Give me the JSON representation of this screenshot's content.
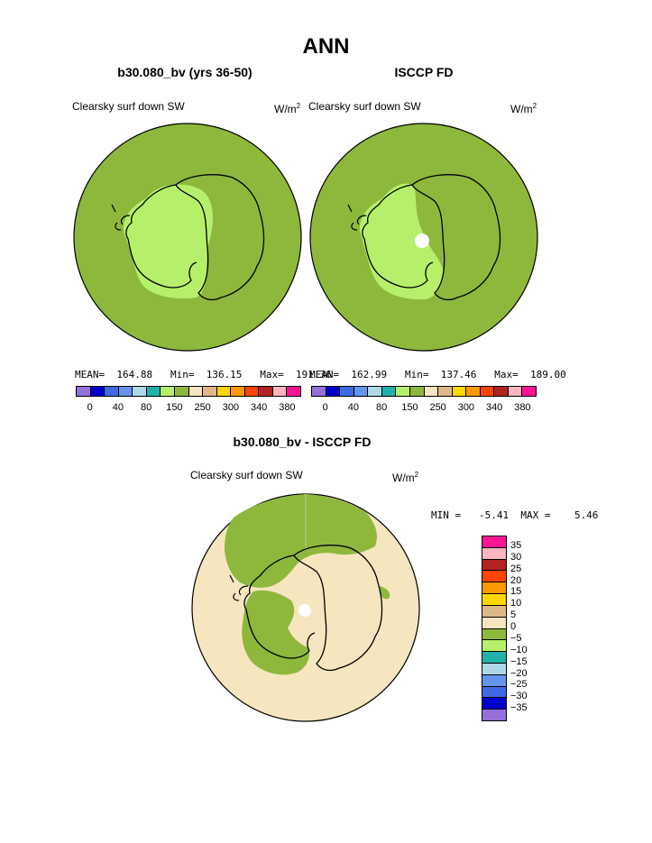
{
  "title": "ANN",
  "palette": [
    "#9370db",
    "#0000cd",
    "#4169e1",
    "#6495ed",
    "#add8e6",
    "#20b2aa",
    "#b6f06a",
    "#8db83c",
    "#f5e6c0",
    "#deb887",
    "#ffd700",
    "#ff9900",
    "#ff4500",
    "#b22222",
    "#ffb6c1",
    "#ff1493"
  ],
  "colors": {
    "land_green": "#8db83c",
    "ice_light_green": "#b6f06a",
    "diff_bg": "#f5e6c0",
    "missing": "#ffffff"
  },
  "chart_data": [
    {
      "type": "heatmap",
      "title": "b30.080_bv (yrs 36-50)",
      "variable": "Clearsky surf down SW",
      "units": "W/m²",
      "stats": {
        "mean": "164.88",
        "min": "136.15",
        "max": "191.36"
      },
      "stats_text": "MEAN=  164.88   Min=  136.15   Max=  191.36",
      "colorbar_labels": [
        "0",
        "40",
        "80",
        "150",
        "250",
        "300",
        "340",
        "380"
      ],
      "projection": "south-polar stereographic"
    },
    {
      "type": "heatmap",
      "title": "ISCCP FD",
      "variable": "Clearsky surf down SW",
      "units": "W/m²",
      "stats": {
        "mean": "162.99",
        "min": "137.46",
        "max": "189.00"
      },
      "stats_text": "MEAN=  162.99   Min=  137.46   Max=  189.00",
      "colorbar_labels": [
        "0",
        "40",
        "80",
        "150",
        "250",
        "300",
        "340",
        "380"
      ],
      "projection": "south-polar stereographic"
    },
    {
      "type": "heatmap",
      "title": "b30.080_bv - ISCCP FD",
      "variable": "Clearsky surf down SW",
      "units": "W/m²",
      "stats": {
        "min": "-5.41",
        "max": "5.46"
      },
      "stats_text": "MIN =   -5.41  MAX =    5.46",
      "colorbar_labels": [
        "35",
        "30",
        "25",
        "20",
        "15",
        "10",
        "5",
        "0",
        "−5",
        "−10",
        "−15",
        "−20",
        "−25",
        "−30",
        "−35"
      ],
      "projection": "south-polar stereographic"
    }
  ]
}
